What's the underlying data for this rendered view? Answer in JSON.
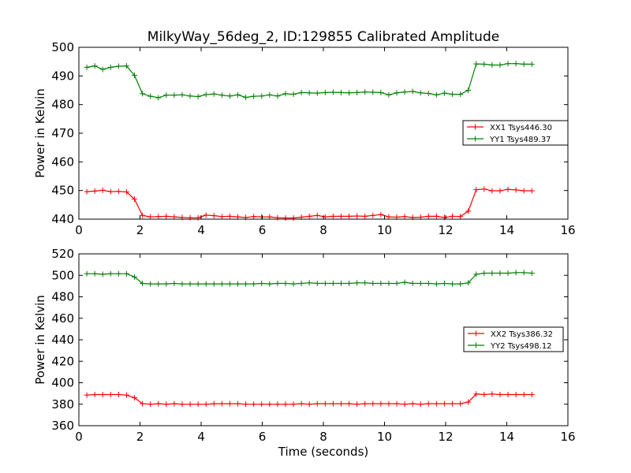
{
  "title": "MilkyWay_56deg_2, ID:129855 Calibrated Amplitude",
  "chart_data": [
    {
      "type": "line",
      "title": "MilkyWay_56deg_2, ID:129855 Calibrated Amplitude",
      "xlabel": "",
      "ylabel": "Power in Kelvin",
      "xlim": [
        0,
        16
      ],
      "ylim": [
        440,
        500
      ],
      "xticks": [
        "0",
        "2",
        "4",
        "6",
        "8",
        "10",
        "12",
        "14",
        "16"
      ],
      "yticks": [
        "440",
        "450",
        "460",
        "470",
        "480",
        "490",
        "500"
      ],
      "grid": false,
      "legend_position": "right",
      "x": [
        0.26,
        0.52,
        0.78,
        1.04,
        1.3,
        1.56,
        1.82,
        2.08,
        2.34,
        2.6,
        2.86,
        3.12,
        3.38,
        3.64,
        3.9,
        4.16,
        4.42,
        4.68,
        4.94,
        5.2,
        5.46,
        5.72,
        5.98,
        6.24,
        6.5,
        6.76,
        7.02,
        7.28,
        7.54,
        7.8,
        8.06,
        8.32,
        8.58,
        8.84,
        9.1,
        9.36,
        9.62,
        9.88,
        10.14,
        10.4,
        10.66,
        10.92,
        11.18,
        11.44,
        11.7,
        11.96,
        12.22,
        12.48,
        12.74,
        13.0,
        13.26,
        13.52,
        13.78,
        14.04,
        14.3,
        14.56,
        14.82
      ],
      "series": [
        {
          "name": "XX1 Tsys446.30",
          "color": "#ff0000",
          "values": [
            449.6,
            449.8,
            450.1,
            449.6,
            449.7,
            449.5,
            447.0,
            441.3,
            440.8,
            440.9,
            441.0,
            440.8,
            440.6,
            440.5,
            440.5,
            441.4,
            441.2,
            440.9,
            441.0,
            440.8,
            440.6,
            440.9,
            440.8,
            440.8,
            440.5,
            440.4,
            440.4,
            440.7,
            441.0,
            441.3,
            440.8,
            441.0,
            441.0,
            441.0,
            441.1,
            441.0,
            441.3,
            441.6,
            440.8,
            440.7,
            440.9,
            440.6,
            440.7,
            441.0,
            441.0,
            440.6,
            441.0,
            440.9,
            442.8,
            450.3,
            450.5,
            449.9,
            449.9,
            450.4,
            450.2,
            449.9,
            449.9
          ]
        },
        {
          "name": "YY1 Tsys489.37",
          "color": "#008000",
          "values": [
            493.0,
            493.5,
            492.3,
            493.0,
            493.4,
            493.5,
            490.2,
            483.8,
            482.9,
            482.4,
            483.3,
            483.3,
            483.4,
            483.0,
            482.8,
            483.5,
            483.7,
            483.3,
            483.0,
            483.4,
            482.5,
            482.9,
            483.0,
            483.4,
            483.0,
            483.8,
            483.6,
            484.2,
            484.1,
            484.0,
            484.2,
            484.3,
            484.2,
            484.1,
            484.2,
            484.4,
            484.3,
            484.2,
            483.4,
            484.1,
            484.4,
            484.6,
            484.1,
            483.9,
            483.4,
            484.0,
            483.6,
            483.6,
            485.0,
            494.2,
            494.1,
            493.8,
            493.8,
            494.3,
            494.3,
            494.1,
            494.1
          ]
        }
      ]
    },
    {
      "type": "line",
      "title": "",
      "xlabel": "Time (seconds)",
      "ylabel": "Power in Kelvin",
      "xlim": [
        0,
        16
      ],
      "ylim": [
        360,
        520
      ],
      "xticks": [
        "0",
        "2",
        "4",
        "6",
        "8",
        "10",
        "12",
        "14",
        "16"
      ],
      "yticks": [
        "360",
        "380",
        "400",
        "420",
        "440",
        "460",
        "480",
        "500",
        "520"
      ],
      "grid": false,
      "legend_position": "right",
      "x": [
        0.26,
        0.52,
        0.78,
        1.04,
        1.3,
        1.56,
        1.82,
        2.08,
        2.34,
        2.6,
        2.86,
        3.12,
        3.38,
        3.64,
        3.9,
        4.16,
        4.42,
        4.68,
        4.94,
        5.2,
        5.46,
        5.72,
        5.98,
        6.24,
        6.5,
        6.76,
        7.02,
        7.28,
        7.54,
        7.8,
        8.06,
        8.32,
        8.58,
        8.84,
        9.1,
        9.36,
        9.62,
        9.88,
        10.14,
        10.4,
        10.66,
        10.92,
        11.18,
        11.44,
        11.7,
        11.96,
        12.22,
        12.48,
        12.74,
        13.0,
        13.26,
        13.52,
        13.78,
        14.04,
        14.3,
        14.56,
        14.82
      ],
      "series": [
        {
          "name": "XX2 Tsys386.32",
          "color": "#ff0000",
          "values": [
            388.5,
            389.0,
            389.0,
            389.0,
            389.0,
            388.5,
            386.0,
            380.5,
            380.0,
            380.5,
            380.0,
            380.5,
            380.0,
            380.0,
            380.0,
            380.0,
            380.5,
            380.5,
            380.5,
            380.5,
            380.0,
            380.0,
            380.0,
            380.0,
            380.0,
            380.0,
            380.0,
            380.5,
            380.0,
            380.5,
            380.5,
            380.5,
            380.5,
            380.5,
            380.0,
            380.5,
            380.5,
            380.5,
            380.5,
            380.5,
            380.0,
            380.5,
            380.0,
            380.5,
            380.5,
            380.5,
            380.5,
            380.5,
            382.0,
            389.5,
            389.0,
            389.5,
            389.0,
            389.0,
            389.0,
            389.0,
            389.0
          ]
        },
        {
          "name": "YY2 Tsys498.12",
          "color": "#008000",
          "values": [
            501.5,
            501.5,
            501.0,
            501.5,
            501.5,
            501.5,
            498.5,
            492.5,
            492.0,
            492.0,
            492.0,
            492.5,
            492.0,
            492.0,
            492.0,
            492.0,
            492.0,
            492.0,
            492.0,
            492.0,
            492.0,
            492.0,
            492.5,
            492.0,
            492.5,
            492.5,
            492.0,
            492.5,
            493.0,
            492.5,
            492.5,
            492.5,
            492.5,
            492.5,
            493.0,
            493.0,
            492.5,
            492.5,
            492.5,
            492.5,
            493.5,
            492.5,
            492.5,
            492.5,
            492.0,
            492.5,
            492.0,
            492.0,
            493.0,
            501.0,
            502.0,
            502.0,
            502.0,
            502.0,
            502.5,
            502.5,
            502.0
          ]
        }
      ]
    }
  ]
}
